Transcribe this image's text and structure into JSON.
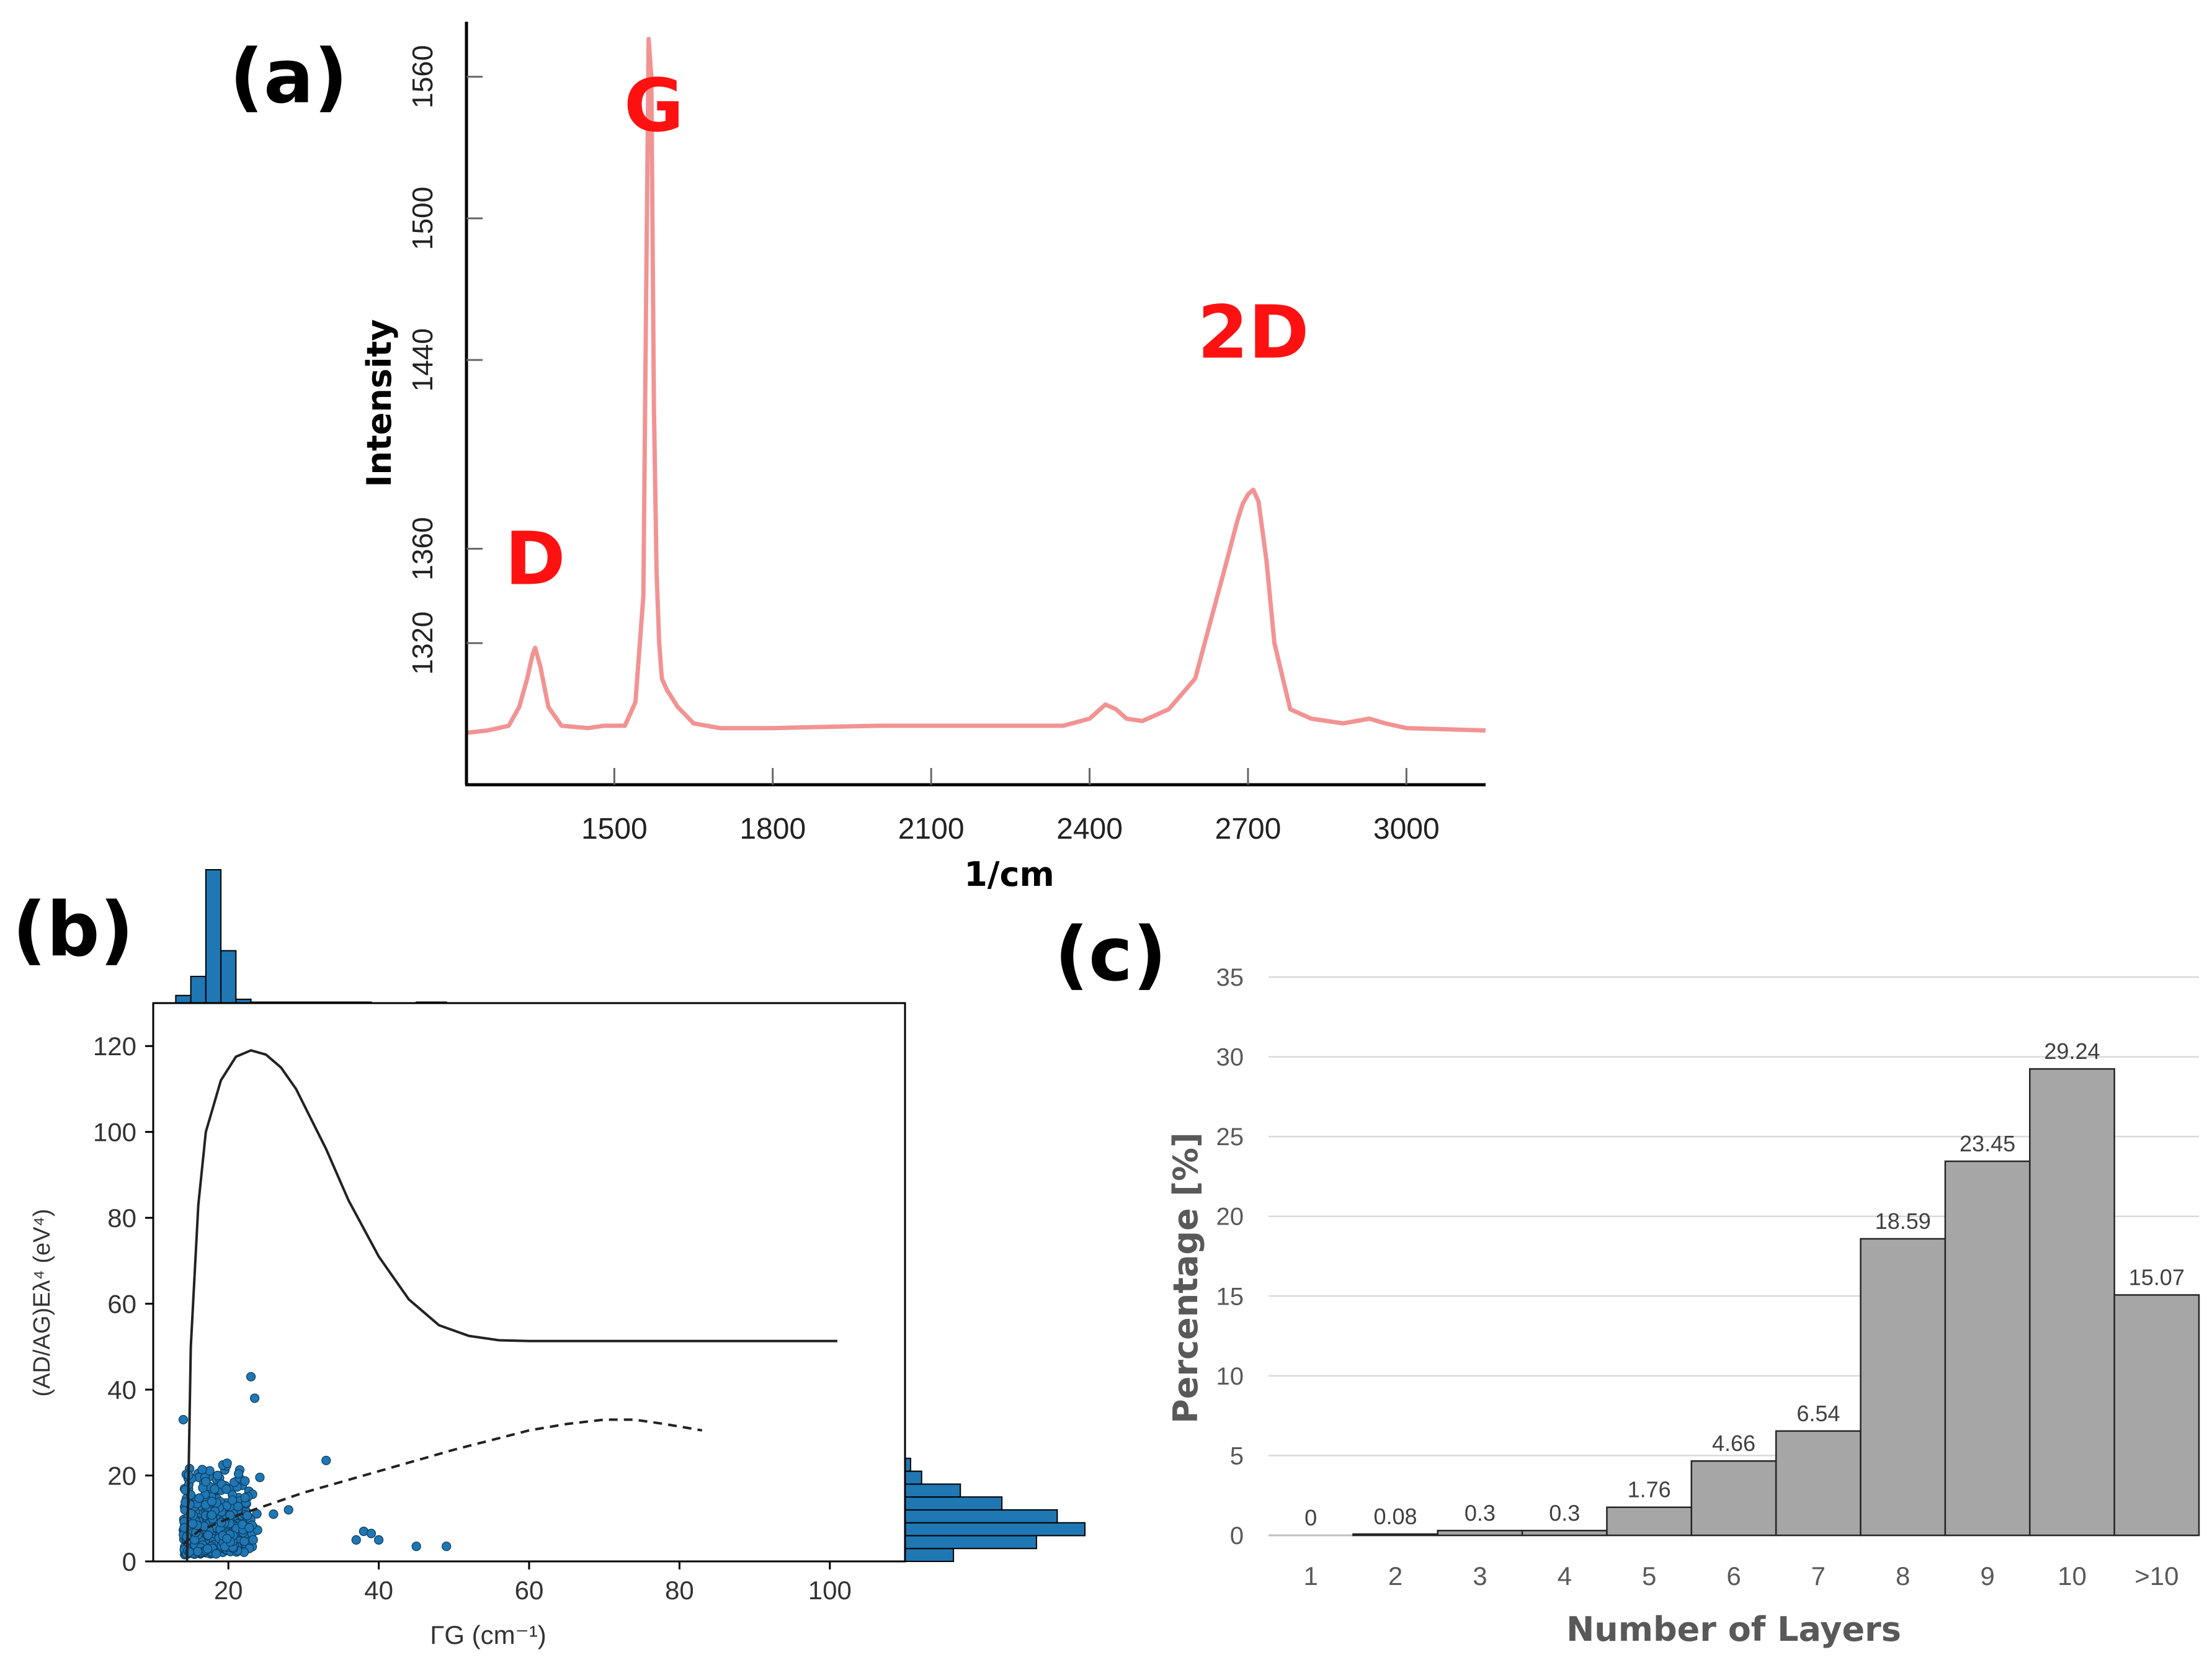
{
  "panels": {
    "a": {
      "label": "(a)"
    },
    "b": {
      "label": "(b)"
    },
    "c": {
      "label": "(c)"
    }
  },
  "chart_data": [
    {
      "id": "a",
      "type": "line",
      "xlabel": "1/cm",
      "ylabel": "Intensity",
      "xlim": [
        1220,
        3150
      ],
      "ylim": [
        1260,
        1582
      ],
      "xticks": [
        "1500",
        "1800",
        "2100",
        "2400",
        "2700",
        "3000"
      ],
      "yticks": [
        "1320",
        "1360",
        "1440",
        "1500",
        "1560"
      ],
      "ytick_values": [
        1320,
        1360,
        1440,
        1500,
        1560
      ],
      "line_color": "#f08080",
      "annotation_color": "#ff1111",
      "annotations": [
        {
          "text": "D",
          "x": 1350,
          "y": 1345
        },
        {
          "text": "G",
          "x": 1575,
          "y": 1537
        },
        {
          "text": "2D",
          "x": 2710,
          "y": 1441
        }
      ],
      "series": [
        {
          "x": [
            1220,
            1260,
            1300,
            1320,
            1335,
            1345,
            1350,
            1360,
            1375,
            1400,
            1450,
            1480,
            1520,
            1540,
            1555,
            1560,
            1565,
            1570,
            1575,
            1580,
            1585,
            1590,
            1600,
            1620,
            1650,
            1700,
            1800,
            2000,
            2200,
            2350,
            2400,
            2430,
            2450,
            2470,
            2500,
            2550,
            2600,
            2630,
            2660,
            2680,
            2690,
            2700,
            2710,
            2720,
            2735,
            2750,
            2780,
            2820,
            2880,
            2930,
            2960,
            3000,
            3150
          ],
          "y": [
            1282,
            1283,
            1285,
            1293,
            1305,
            1315,
            1318,
            1310,
            1293,
            1285,
            1284,
            1285,
            1285,
            1295,
            1340,
            1460,
            1576,
            1560,
            1420,
            1350,
            1320,
            1305,
            1300,
            1293,
            1286,
            1284,
            1284,
            1285,
            1285,
            1285,
            1288,
            1294,
            1292,
            1288,
            1287,
            1292,
            1305,
            1330,
            1355,
            1372,
            1379,
            1383,
            1385,
            1380,
            1355,
            1320,
            1292,
            1288,
            1286,
            1288,
            1286,
            1284,
            1283
          ]
        }
      ]
    },
    {
      "id": "b",
      "type": "scatter",
      "xlabel": "ΓG (cm⁻¹)",
      "ylabel": "(AD/AG)Eλ⁴ (eV⁴)",
      "xlim": [
        10,
        110
      ],
      "ylim": [
        0,
        130
      ],
      "xticks": [
        "20",
        "40",
        "60",
        "80",
        "100"
      ],
      "yticks": [
        "0",
        "20",
        "40",
        "60",
        "80",
        "100",
        "120"
      ],
      "marker_color": "#1f77b4",
      "series": [
        {
          "name": "",
          "style": "solid",
          "x": [
            14.5,
            14.7,
            15,
            16,
            17,
            19,
            21,
            23,
            25,
            27,
            29,
            31,
            33,
            36,
            40,
            44,
            48,
            52,
            56,
            60,
            70,
            80,
            90,
            101
          ],
          "y": [
            0,
            20,
            50,
            83,
            100,
            112,
            117.5,
            119,
            118,
            115,
            110,
            103,
            96,
            84,
            71,
            61,
            55,
            52.5,
            51.5,
            51.3,
            51.3,
            51.3,
            51.3,
            51.3
          ]
        },
        {
          "name": "",
          "style": "dashed",
          "x": [
            14,
            16,
            20,
            25,
            30,
            40,
            50,
            60,
            65,
            70,
            74,
            78,
            83
          ],
          "y": [
            4,
            7,
            10,
            13,
            16,
            21,
            26,
            30.5,
            32,
            33,
            33,
            32,
            30.5
          ]
        }
      ],
      "scatter_outliers": [
        {
          "x": 14,
          "y": 33
        },
        {
          "x": 23,
          "y": 43
        },
        {
          "x": 23.5,
          "y": 38
        },
        {
          "x": 33,
          "y": 23.5
        },
        {
          "x": 37,
          "y": 5
        },
        {
          "x": 38,
          "y": 7
        },
        {
          "x": 39,
          "y": 6.5
        },
        {
          "x": 40,
          "y": 5
        },
        {
          "x": 45,
          "y": 3.5
        },
        {
          "x": 49,
          "y": 3.5
        },
        {
          "x": 26,
          "y": 11
        },
        {
          "x": 28,
          "y": 12
        }
      ],
      "top_histogram": {
        "bins": [
          13,
          15,
          17,
          19,
          21,
          23,
          25,
          27,
          29,
          31,
          33,
          35,
          37,
          39,
          41,
          43,
          45,
          47,
          49
        ],
        "counts": [
          8,
          28,
          140,
          55,
          4,
          1,
          1,
          1,
          1,
          1,
          1,
          1,
          1,
          0,
          0,
          0,
          1,
          1
        ]
      },
      "right_histogram": {
        "bins": [
          0,
          3,
          6,
          9,
          12,
          15,
          18,
          21,
          24
        ],
        "counts": [
          35,
          95,
          130,
          110,
          70,
          40,
          12,
          4
        ]
      }
    },
    {
      "id": "c",
      "type": "bar",
      "xlabel": "Number of Layers",
      "ylabel": "Percentage [%]",
      "ylim": [
        0,
        35
      ],
      "yticks": [
        "0",
        "5",
        "10",
        "15",
        "20",
        "25",
        "30",
        "35"
      ],
      "categories": [
        "1",
        "2",
        "3",
        "4",
        "5",
        "6",
        "7",
        "8",
        "9",
        "10",
        ">10"
      ],
      "values": [
        0,
        0.08,
        0.3,
        0.3,
        1.76,
        4.66,
        6.54,
        18.59,
        23.45,
        29.24,
        15.07
      ],
      "data_labels": [
        "0",
        "0.08",
        "0.3",
        "0.3",
        "1.76",
        "4.66",
        "6.54",
        "18.59",
        "23.45",
        "29.24",
        "15.07"
      ],
      "bar_color": "#a6a6a6",
      "grid": true
    }
  ]
}
